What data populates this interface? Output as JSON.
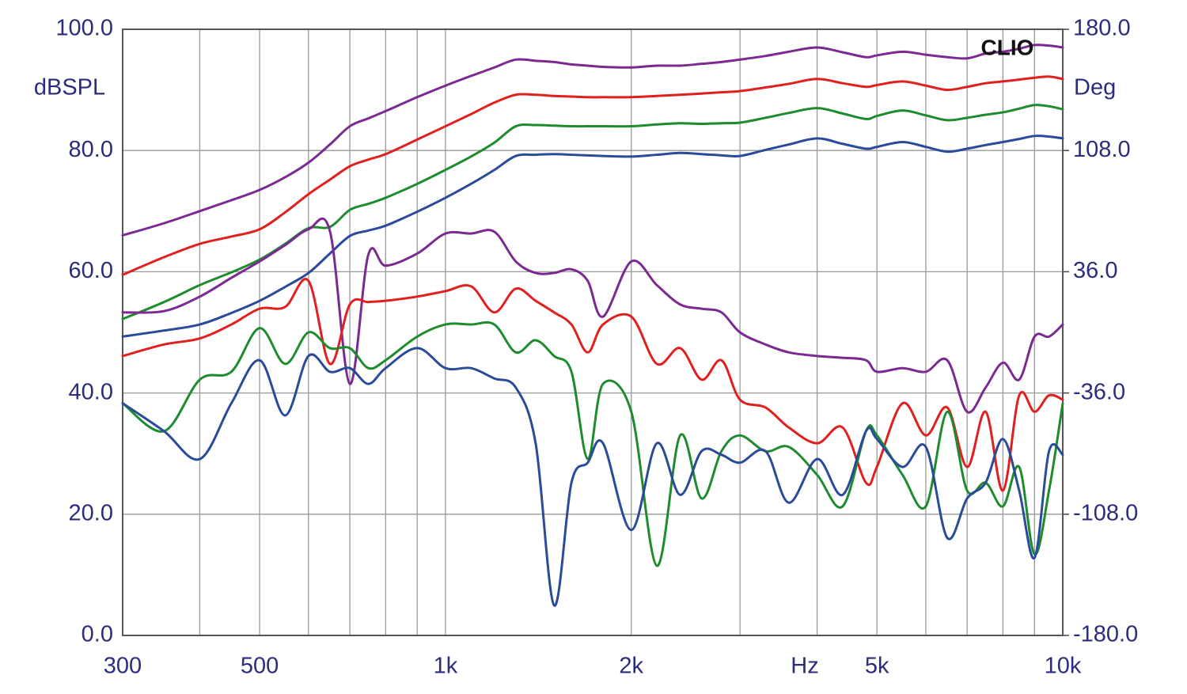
{
  "chart_data": {
    "type": "line",
    "watermark": "CLIO",
    "x_label": "Hz",
    "y_label": "dBSPL",
    "y2_label": "Deg",
    "log_x": true,
    "grid": true,
    "xlim": [
      300,
      10000
    ],
    "xticks": [
      300,
      500,
      {
        "value": 1000,
        "label": "1k"
      },
      {
        "value": 2000,
        "label": "2k"
      },
      {
        "value": 5000,
        "label": "5k"
      },
      {
        "value": 10000,
        "label": "10k"
      }
    ],
    "x_minor_ticks": [
      400,
      600,
      700,
      800,
      900,
      3000,
      4000,
      6000,
      7000,
      8000,
      9000
    ],
    "ylim": [
      0,
      100
    ],
    "yticks": [
      {
        "value": 0,
        "label": "0.0"
      },
      {
        "value": 20,
        "label": "20.0"
      },
      {
        "value": 40,
        "label": "40.0"
      },
      {
        "value": 60,
        "label": "60.0"
      },
      {
        "value": 80,
        "label": "80.0"
      },
      {
        "value": 100,
        "label": "100.0"
      }
    ],
    "y2lim": [
      -180,
      180
    ],
    "y2ticks": [
      {
        "value": -180,
        "label": "-180.0"
      },
      {
        "value": -108,
        "label": "-108.0"
      },
      {
        "value": -36,
        "label": "-36.0"
      },
      {
        "value": 36,
        "label": "36.0"
      },
      {
        "value": 108,
        "label": "108.0"
      },
      {
        "value": 180,
        "label": "180.0"
      }
    ],
    "x": [
      300,
      350,
      400,
      450,
      500,
      550,
      600,
      650,
      700,
      750,
      800,
      900,
      1000,
      1100,
      1200,
      1300,
      1400,
      1500,
      1600,
      1700,
      1800,
      2000,
      2200,
      2400,
      2600,
      2800,
      3000,
      3300,
      3600,
      4000,
      4400,
      4800,
      5000,
      5500,
      6000,
      6500,
      7000,
      7500,
      8000,
      8500,
      9000,
      9500,
      10000
    ],
    "series": [
      {
        "color": "#7b2a91",
        "values": [
          66,
          68,
          70,
          71.8,
          73.5,
          75.6,
          78,
          81,
          84,
          85.3,
          86.5,
          88.8,
          90.7,
          92.3,
          93.7,
          95,
          94.8,
          94.6,
          94.2,
          94,
          93.8,
          93.7,
          94,
          94,
          94.3,
          94.6,
          95,
          95.6,
          96.3,
          97,
          96.2,
          95.4,
          95.7,
          96.3,
          95.8,
          95.4,
          95.2,
          96,
          96.3,
          96.8,
          97.4,
          97.3,
          97
        ]
      },
      {
        "color": "#e0201e",
        "values": [
          59.5,
          62.4,
          64.6,
          65.8,
          67,
          69.8,
          72.8,
          75.2,
          77.4,
          78.5,
          79.4,
          81.8,
          84,
          86,
          87.9,
          89.2,
          89.2,
          89,
          88.9,
          88.8,
          88.8,
          88.8,
          89,
          89.2,
          89.4,
          89.6,
          89.8,
          90.4,
          91,
          91.8,
          91.1,
          90.5,
          90.8,
          91.4,
          90.7,
          90,
          90.5,
          91.1,
          91.4,
          91.7,
          92,
          92.2,
          91.8
        ]
      },
      {
        "color": "#1e8c2e",
        "values": [
          52.2,
          55,
          57.8,
          59.9,
          62,
          64.6,
          67.2,
          67.4,
          70.2,
          71.2,
          72.2,
          74.5,
          76.8,
          79,
          81.3,
          84,
          84.2,
          84.1,
          84,
          84,
          84,
          84,
          84.3,
          84.5,
          84.4,
          84.5,
          84.6,
          85.4,
          86.2,
          87,
          86.1,
          85.2,
          85.7,
          86.6,
          85.8,
          85,
          85.4,
          85.9,
          86.3,
          86.9,
          87.5,
          87.3,
          86.8
        ]
      },
      {
        "color": "#2a4a9a",
        "values": [
          49.3,
          50.3,
          51.3,
          53.2,
          55.2,
          57.5,
          59.8,
          63,
          65.9,
          66.8,
          67.6,
          69.9,
          72.2,
          74.5,
          76.8,
          79.1,
          79.3,
          79.4,
          79.3,
          79.2,
          79.1,
          79,
          79.3,
          79.6,
          79.4,
          79.2,
          79.1,
          80.1,
          81,
          82,
          81.1,
          80.3,
          80.6,
          81.4,
          80.6,
          79.8,
          80.3,
          80.9,
          81.4,
          81.9,
          82.4,
          82.3,
          82
        ]
      },
      {
        "color": "#7b2a91",
        "values": [
          53.3,
          53.5,
          55.9,
          59,
          61.7,
          64.4,
          67,
          66.7,
          41.5,
          62.8,
          61,
          63,
          66.3,
          66.3,
          66.6,
          61.7,
          59.8,
          59.8,
          60.4,
          58.5,
          52.6,
          61.7,
          57.8,
          54.6,
          53.9,
          53.3,
          50,
          48,
          46.7,
          46.1,
          45.8,
          45.4,
          43.5,
          44.1,
          43.5,
          45.4,
          36.9,
          40.9,
          45,
          42.2,
          49.3,
          49.3,
          51.3
        ]
      },
      {
        "color": "#e0201e",
        "values": [
          46.1,
          48,
          49,
          51.3,
          53.9,
          54.2,
          58.5,
          44.8,
          54.6,
          55,
          55.2,
          55.9,
          56.8,
          57.6,
          53.3,
          57.2,
          55.2,
          53.3,
          51.3,
          46.7,
          51.3,
          52.6,
          44.8,
          47.4,
          42.2,
          45.4,
          38.9,
          37.6,
          34.3,
          31.7,
          34.3,
          25.2,
          27.8,
          38.3,
          33,
          37.6,
          27.8,
          36.9,
          23.9,
          39.6,
          36.9,
          39.6,
          38.9
        ]
      },
      {
        "color": "#1e8c2e",
        "values": [
          38.3,
          33.7,
          42.2,
          43.5,
          50.7,
          44.8,
          50,
          47.4,
          47.4,
          44.1,
          45.4,
          49.3,
          51.3,
          51.3,
          51.3,
          46.7,
          48.7,
          46.1,
          43.5,
          29.1,
          41.5,
          36.9,
          11.5,
          33,
          22.6,
          30.4,
          33,
          30.4,
          31.1,
          26.5,
          21.3,
          33.7,
          33,
          26.5,
          21.3,
          36.9,
          23.9,
          25.2,
          21.3,
          27.8,
          13.4,
          23.9,
          38.3
        ]
      },
      {
        "color": "#2a4a9a",
        "values": [
          38.3,
          33.7,
          29.1,
          38.3,
          45.4,
          36.3,
          46.1,
          43.5,
          44.1,
          41.5,
          44.1,
          47.4,
          44.1,
          44.1,
          42.4,
          40.9,
          31.7,
          4.96,
          25.2,
          28.5,
          31.7,
          17.4,
          31.7,
          23.2,
          30.4,
          29.8,
          28.5,
          30.4,
          21.9,
          29.1,
          23.2,
          33.7,
          32.4,
          27.8,
          31.1,
          16.1,
          22.6,
          25.2,
          32.4,
          23.9,
          12.8,
          30.4,
          29.8
        ]
      }
    ]
  }
}
